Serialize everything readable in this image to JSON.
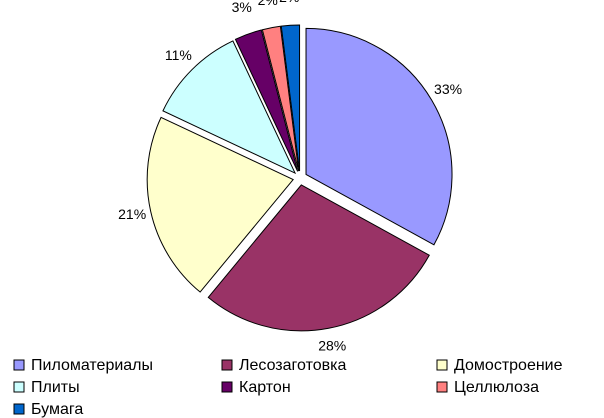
{
  "chart_data": {
    "type": "pie",
    "categories": [
      "Пиломатериалы",
      "Лесозаготовка",
      "Домостроение",
      "Плиты",
      "Картон",
      "Целлюлоза",
      "Бумага"
    ],
    "values": [
      33,
      28,
      21,
      11,
      3,
      2,
      2
    ],
    "value_labels": [
      "33%",
      "28%",
      "21%",
      "11%",
      "3%",
      "2%",
      "2%"
    ],
    "colors": [
      "#9999ff",
      "#993366",
      "#ffffcc",
      "#ccffff",
      "#660066",
      "#ff8080",
      "#0066cc"
    ],
    "legend": "bottom"
  }
}
